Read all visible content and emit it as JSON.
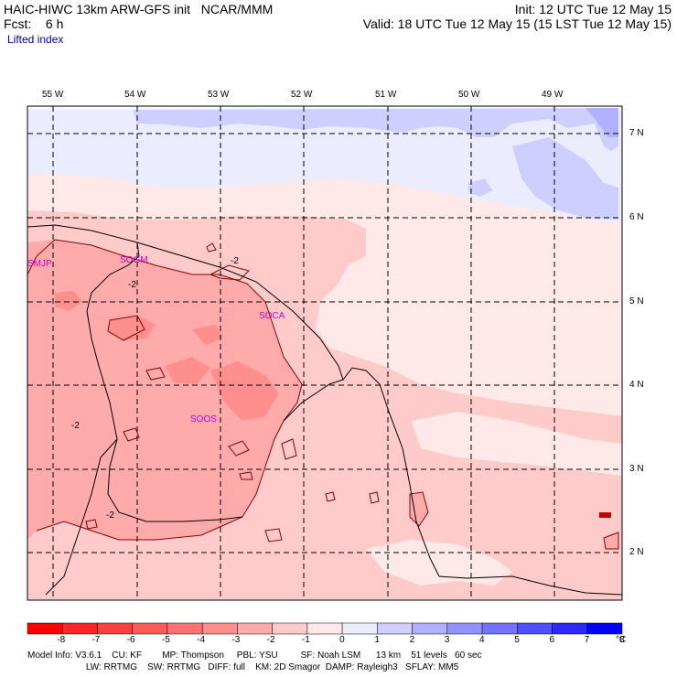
{
  "header": {
    "model": "HAIC-HIWC 13km ARW-GFS init",
    "org": "NCAR/MMM",
    "fcst_label": "Fcst:",
    "fcst_value": "6 h",
    "init": "Init: 12 UTC Tue 12 May 15",
    "valid": "Valid: 18 UTC Tue 12 May 15 (15 LST Tue 12 May 15)",
    "field": "Lifted index"
  },
  "map": {
    "lon_labels": [
      "55 W",
      "54 W",
      "53 W",
      "52 W",
      "51 W",
      "50 W",
      "49 W"
    ],
    "lat_labels": [
      "7 N",
      "6 N",
      "5 N",
      "4 N",
      "3 N",
      "2 N"
    ],
    "stations": [
      "SMJP",
      "SOGM",
      "SOCA",
      "SOOS"
    ],
    "contour_labels": [
      "-2",
      "-2",
      "-2",
      "-2"
    ]
  },
  "colorbar": {
    "ticks": [
      "-8",
      "-7",
      "-6",
      "-5",
      "-4",
      "-3",
      "-2",
      "-1",
      "0",
      "1",
      "2",
      "3",
      "4",
      "5",
      "6",
      "7",
      "8"
    ],
    "unit": "°C",
    "colors": [
      "#ff0000",
      "#ff2525",
      "#ff4040",
      "#ff5a5a",
      "#ff7272",
      "#ff8e8e",
      "#ffabab",
      "#ffcaca",
      "#ffe8e8",
      "#ececff",
      "#cfcfff",
      "#b0b0ff",
      "#9292ff",
      "#7373ff",
      "#5050ff",
      "#2b2bff",
      "#0000ff"
    ]
  },
  "model_info": {
    "line1": "Model Info: V3.6.1    CU: KF        MP: Thompson     PBL: YSU         SF: Noah LSM      13 km    51 levels   60 sec",
    "line2": "                       LW: RRTMG    SW: RRTMG   DIFF: full    KM: 2D Smagor  DAMP: Rayleigh3   SFLAY: MM5"
  }
}
